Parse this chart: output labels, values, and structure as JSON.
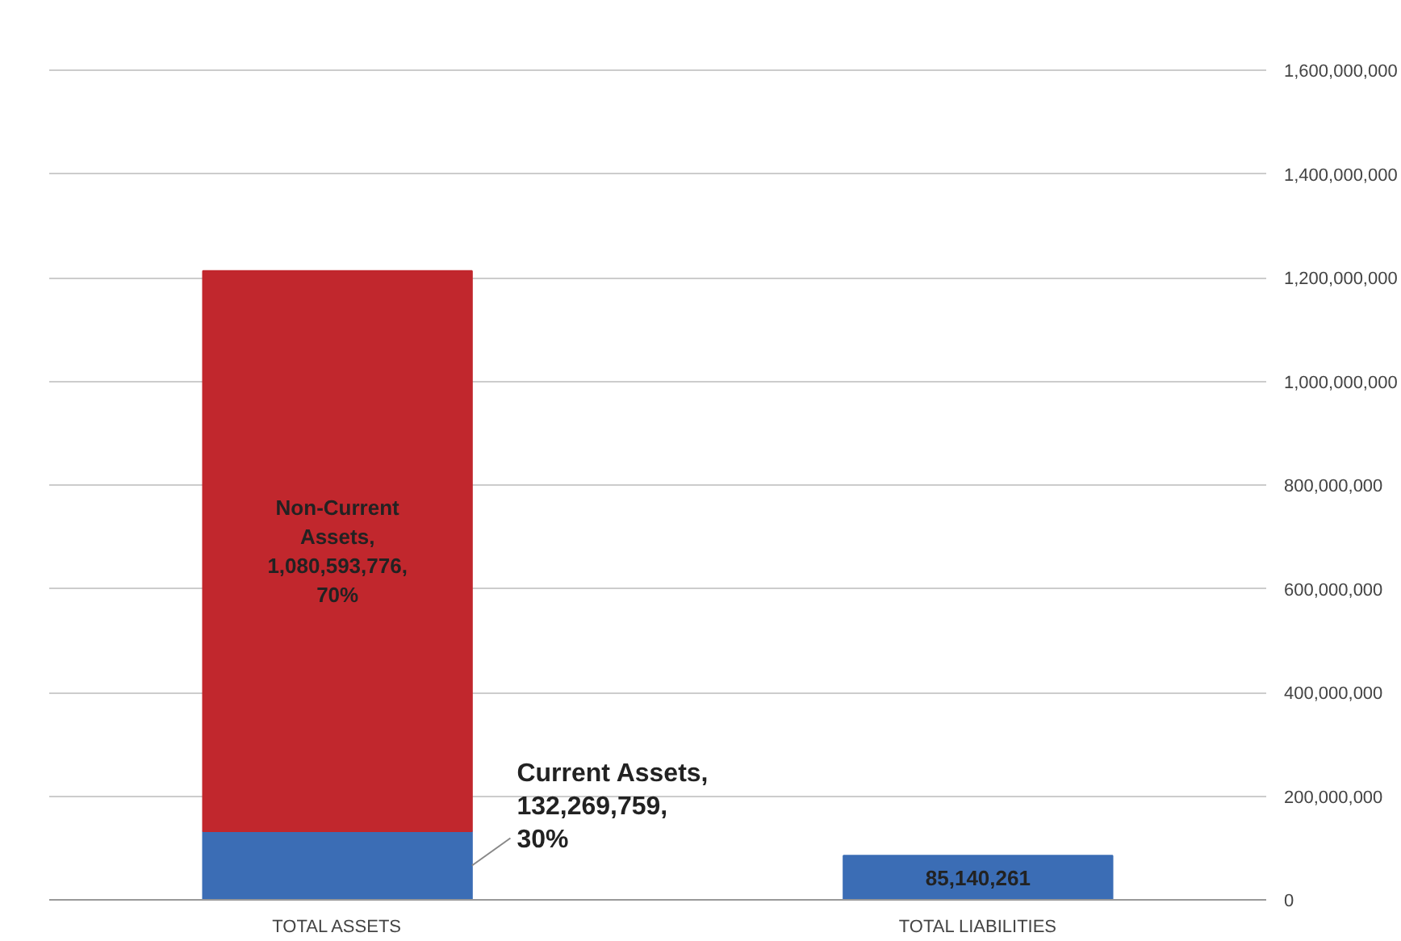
{
  "chart_data": {
    "type": "bar",
    "stacked": true,
    "categories": [
      "TOTAL ASSETS",
      "TOTAL LIABILITIES"
    ],
    "series": [
      {
        "color": "#3b6db5",
        "values": [
          132269759,
          85140261
        ],
        "value_labels": [
          "Current Assets,\n132,269,759,\n30%",
          "85,140,261"
        ]
      },
      {
        "color": "#c1272d",
        "values": [
          1080593776,
          null
        ],
        "value_labels": [
          "Non-Current\nAssets,\n1,080,593,776,\n70%",
          null
        ]
      }
    ],
    "ylim": [
      0,
      1600000000
    ],
    "yticks": [
      {
        "value": 0,
        "label": "0"
      },
      {
        "value": 200000000,
        "label": "200,000,000"
      },
      {
        "value": 400000000,
        "label": "400,000,000"
      },
      {
        "value": 600000000,
        "label": "600,000,000"
      },
      {
        "value": 800000000,
        "label": "800,000,000"
      },
      {
        "value": 1000000000,
        "label": "1,000,000,000"
      },
      {
        "value": 1200000000,
        "label": "1,200,000,000"
      },
      {
        "value": 1400000000,
        "label": "1,400,000,000"
      },
      {
        "value": 1600000000,
        "label": "1,600,000,000"
      }
    ],
    "grid": "y"
  }
}
